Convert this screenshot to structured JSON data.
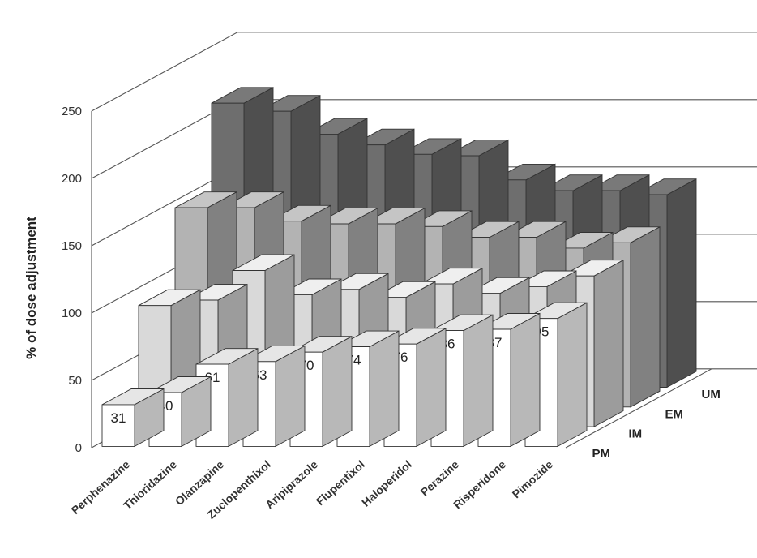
{
  "chart_data": {
    "type": "bar",
    "subtype": "3d-grouped-depth",
    "title": "",
    "xlabel": "",
    "ylabel": "% of dose adjustment",
    "ylim": [
      0,
      250
    ],
    "yticks": [
      0,
      50,
      100,
      150,
      200,
      250
    ],
    "grid": true,
    "categories": [
      "Perphenazine",
      "Thioridazine",
      "Olanzapine",
      "Zuclopenthixol",
      "Aripiprazole",
      "Flupentixol",
      "Haloperidol",
      "Perazine",
      "Risperidone",
      "Pimozide"
    ],
    "series": [
      {
        "name": "PM",
        "values": [
          31,
          40,
          61,
          63,
          70,
          74,
          76,
          86,
          87,
          95
        ],
        "color": "#ffffff"
      },
      {
        "name": "IM",
        "values": [
          90,
          94,
          116,
          98,
          102,
          96,
          106,
          99,
          104,
          112
        ],
        "color": "#d9d9d9"
      },
      {
        "name": "EM",
        "values": [
          148,
          148,
          138,
          136,
          136,
          134,
          126,
          126,
          118,
          122
        ],
        "color": "#b3b3b3"
      },
      {
        "name": "UM",
        "values": [
          211,
          205,
          188,
          180,
          173,
          172,
          154,
          146,
          146,
          143
        ],
        "color": "#6e6e6e"
      }
    ],
    "data_labels_series": "PM"
  }
}
